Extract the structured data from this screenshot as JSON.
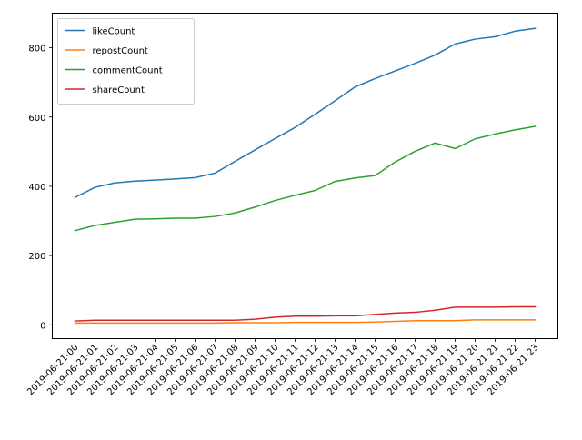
{
  "chart_data": {
    "type": "line",
    "title": "",
    "xlabel": "",
    "ylabel": "",
    "x": [
      "2019-06-21-00",
      "2019-06-21-01",
      "2019-06-21-02",
      "2019-06-21-03",
      "2019-06-21-04",
      "2019-06-21-05",
      "2019-06-21-06",
      "2019-06-21-07",
      "2019-06-21-08",
      "2019-06-21-09",
      "2019-06-21-10",
      "2019-06-21-11",
      "2019-06-21-12",
      "2019-06-21-13",
      "2019-06-21-14",
      "2019-06-21-15",
      "2019-06-21-16",
      "2019-06-21-17",
      "2019-06-21-18",
      "2019-06-21-19",
      "2019-06-21-20",
      "2019-06-21-21",
      "2019-06-21-22",
      "2019-06-21-23"
    ],
    "ylim": [
      -40,
      900
    ],
    "yticks": [
      0,
      200,
      400,
      600,
      800
    ],
    "grid": false,
    "legend": "top-left",
    "series": [
      {
        "name": "likeCount",
        "color": "#1f77b4",
        "values": [
          368,
          397,
          410,
          415,
          418,
          421,
          425,
          438,
          472,
          505,
          538,
          570,
          608,
          647,
          687,
          711,
          733,
          755,
          779,
          811,
          825,
          832,
          848,
          856
        ]
      },
      {
        "name": "repostCount",
        "color": "#ff7f0e",
        "values": [
          5,
          5,
          5,
          5,
          5,
          5,
          5,
          5,
          6,
          6,
          6,
          7,
          7,
          7,
          7,
          8,
          10,
          12,
          12,
          12,
          14,
          14,
          14,
          14
        ]
      },
      {
        "name": "commentCount",
        "color": "#2ca02c",
        "values": [
          272,
          287,
          296,
          305,
          306,
          308,
          308,
          313,
          323,
          340,
          359,
          374,
          388,
          414,
          424,
          431,
          470,
          501,
          525,
          509,
          537,
          551,
          563,
          573
        ]
      },
      {
        "name": "shareCount",
        "color": "#d62728",
        "values": [
          11,
          13,
          13,
          13,
          13,
          13,
          13,
          13,
          13,
          16,
          22,
          25,
          25,
          26,
          26,
          30,
          34,
          36,
          42,
          51,
          51,
          51,
          52,
          52
        ]
      }
    ]
  }
}
